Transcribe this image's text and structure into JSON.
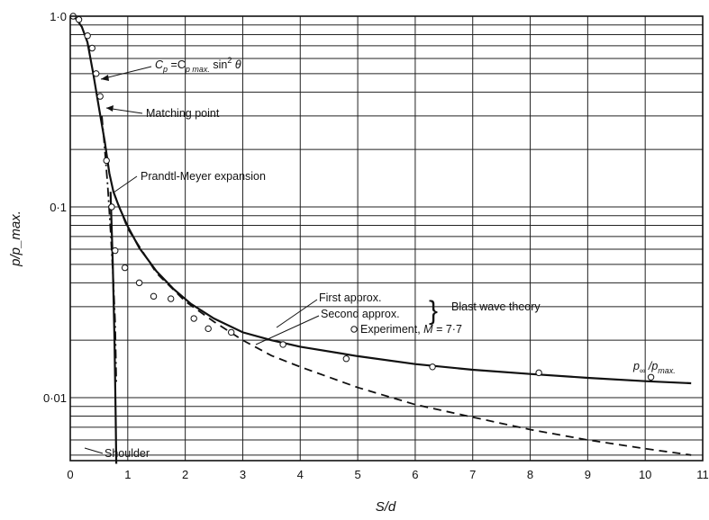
{
  "chart_data": {
    "type": "line",
    "xlabel": "S/d",
    "ylabel": "p/p_max.",
    "xlim": [
      0,
      11
    ],
    "ylim": [
      0.004,
      1.0
    ],
    "yscale": "log",
    "grid": true,
    "x_ticks": [
      0,
      1,
      2,
      3,
      4,
      5,
      6,
      7,
      8,
      9,
      10,
      11
    ],
    "x_tick_labels": [
      "0",
      "1",
      "2",
      "3",
      "4",
      "5",
      "6",
      "7",
      "8",
      "9",
      "10",
      "11"
    ],
    "y_ticks": [
      1.0,
      0.1,
      0.01
    ],
    "y_tick_labels": [
      "1·0",
      "0·1",
      "0·01"
    ],
    "series": [
      {
        "style": "solid",
        "x": [
          0.0,
          0.1,
          0.2,
          0.3,
          0.4,
          0.5,
          0.6,
          0.68,
          0.75,
          0.85,
          1.0,
          1.2,
          1.5,
          1.8,
          2.1,
          2.5,
          3.0,
          3.5,
          4.0,
          5.0,
          6.0,
          7.0,
          8.0,
          9.0,
          10.0,
          10.8
        ],
        "y": [
          1.0,
          0.97,
          0.88,
          0.73,
          0.5,
          0.33,
          0.22,
          0.15,
          0.12,
          0.1,
          0.079,
          0.061,
          0.046,
          0.037,
          0.031,
          0.026,
          0.022,
          0.02,
          0.0185,
          0.0165,
          0.015,
          0.014,
          0.0133,
          0.0127,
          0.0122,
          0.0119
        ]
      },
      {
        "style": "dashed",
        "x": [
          0.75,
          1.0,
          1.5,
          2.0,
          2.5,
          3.0,
          3.5,
          4.0,
          5.0,
          6.0,
          7.0,
          8.0,
          9.0,
          10.0,
          10.8
        ],
        "y": [
          0.12,
          0.077,
          0.045,
          0.032,
          0.025,
          0.02,
          0.0166,
          0.0145,
          0.0113,
          0.0092,
          0.0079,
          0.0068,
          0.006,
          0.0054,
          0.005
        ]
      },
      {
        "style": "dash-dot",
        "x": [
          0.55,
          0.6,
          0.65,
          0.7,
          0.75,
          0.78,
          0.8
        ],
        "y": [
          0.3,
          0.2,
          0.13,
          0.075,
          0.04,
          0.025,
          0.012
        ]
      },
      {
        "style": "solid",
        "x": [
          0.7,
          0.74,
          0.77,
          0.79,
          0.8
        ],
        "y": [
          0.12,
          0.05,
          0.02,
          0.008,
          0.0045
        ]
      }
    ],
    "points": {
      "x": [
        0.05,
        0.15,
        0.3,
        0.38,
        0.45,
        0.52,
        0.63,
        0.72,
        0.78,
        0.95,
        1.2,
        1.45,
        1.75,
        2.15,
        2.4,
        2.8,
        3.7,
        4.8,
        6.3,
        8.15,
        10.1
      ],
      "y": [
        1.0,
        0.96,
        0.79,
        0.68,
        0.5,
        0.38,
        0.175,
        0.1,
        0.059,
        0.048,
        0.04,
        0.034,
        0.033,
        0.026,
        0.023,
        0.022,
        0.019,
        0.016,
        0.0145,
        0.0135,
        0.0128
      ]
    }
  },
  "annotations": {
    "cp_formula": "C",
    "cp_sub": "p",
    "cp_eq": " =C",
    "cp_sub2": "p max.",
    "cp_tail": " sin",
    "cp_sup": "2",
    "cp_theta": " θ",
    "matching_point": "Matching point",
    "prandtl_meyer": "Prandtl-Meyer expansion",
    "first_approx": "First approx.",
    "second_approx": "Second approx.",
    "blast_wave": "Blast wave theory",
    "experiment_prefix": "Experiment, ",
    "experiment_m": "M",
    "experiment_value": " = 7·7",
    "p_inf": "p",
    "p_inf_sub": "∞",
    "p_slash": " /p",
    "p_max_sub": "max.",
    "shoulder": "Shoulder"
  }
}
